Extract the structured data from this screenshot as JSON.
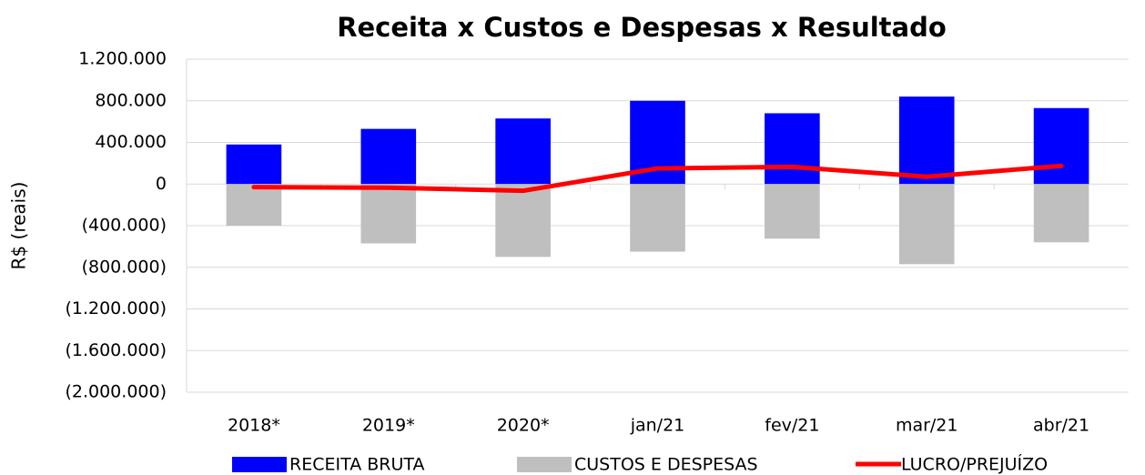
{
  "chart_data": {
    "type": "bar_line",
    "title": "Receita x Custos e Despesas x Resultado",
    "y_label": "R$ (reais)",
    "categories": [
      "2018*",
      "2019*",
      "2020*",
      "jan/21",
      "fev/21",
      "mar/21",
      "abr/21"
    ],
    "series": [
      {
        "name": "RECEITA BRUTA",
        "type": "bar",
        "color": "#0000ff",
        "values": [
          380000,
          530000,
          630000,
          800000,
          680000,
          840000,
          730000
        ]
      },
      {
        "name": "CUSTOS E DESPESAS",
        "type": "bar",
        "color": "#bfbfbf",
        "values": [
          -400000,
          -570000,
          -700000,
          -650000,
          -525000,
          -770000,
          -560000
        ]
      },
      {
        "name": "LUCRO/PREJUÍZO",
        "type": "line",
        "color": "#ff0000",
        "values": [
          -30000,
          -35000,
          -65000,
          150000,
          165000,
          70000,
          175000
        ]
      }
    ],
    "ylim": [
      -2000000,
      1200000
    ],
    "yticks": [
      {
        "value": 1200000,
        "label": "1.200.000"
      },
      {
        "value": 800000,
        "label": "800.000"
      },
      {
        "value": 400000,
        "label": "400.000"
      },
      0,
      {
        "value": -400000,
        "label": "(400.000)"
      },
      {
        "value": -800000,
        "label": "(800.000)"
      },
      {
        "value": -1200000,
        "label": "(1.200.000)"
      },
      {
        "value": -1600000,
        "label": "(1.600.000)"
      },
      {
        "value": -2000000,
        "label": "(2.000.000)"
      }
    ],
    "negative_tick_color": "#ff0000",
    "grid": true,
    "legend": "bottom"
  }
}
